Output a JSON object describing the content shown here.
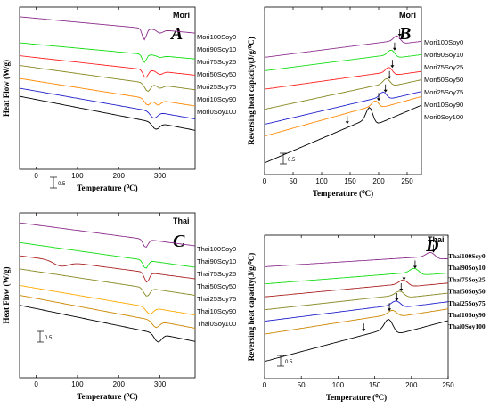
{
  "chart_data": [
    {
      "panel": "A",
      "type": "line",
      "tag": "Mori",
      "ylabel": "Heat Flow (W/g)",
      "xlabel": "Temperature (⁰C)",
      "xlim": [
        -40,
        385
      ],
      "xticks": [
        0,
        100,
        200,
        300
      ],
      "scale_label": "0.5",
      "series": [
        {
          "name": "Mori100Soy0",
          "color": "#8b2c8b",
          "y0": 0.06,
          "slope": 0.1,
          "dips": [
            [
              262,
              0.07,
              7
            ],
            [
              300,
              0.02,
              10
            ]
          ]
        },
        {
          "name": "Mori90Soy10",
          "color": "#11dd11",
          "y0": 0.22,
          "slope": 0.1,
          "dips": [
            [
              262,
              0.05,
              7
            ],
            [
              300,
              0.01,
              10
            ]
          ]
        },
        {
          "name": "Mori75Soy25",
          "color": "#ff2222",
          "y0": 0.3,
          "slope": 0.12,
          "dips": [
            [
              265,
              0.05,
              8
            ],
            [
              300,
              0.02,
              10
            ]
          ]
        },
        {
          "name": "Mori50Soy50",
          "color": "#888822",
          "y0": 0.36,
          "slope": 0.15,
          "dips": [
            [
              270,
              0.05,
              10
            ],
            [
              300,
              0.02,
              10
            ]
          ]
        },
        {
          "name": "Mori25Soy75",
          "color": "#ff8800",
          "y0": 0.44,
          "slope": 0.17,
          "dips": [
            [
              270,
              0.04,
              10
            ],
            [
              295,
              0.03,
              10
            ]
          ]
        },
        {
          "name": "Mori10Soy90",
          "color": "#2222cc",
          "y0": 0.5,
          "slope": 0.19,
          "dips": [
            [
              285,
              0.04,
              12
            ]
          ]
        },
        {
          "name": "Mori0Soy100",
          "color": "#000000",
          "y0": 0.55,
          "slope": 0.21,
          "dips": [
            [
              290,
              0.04,
              12
            ]
          ]
        }
      ]
    },
    {
      "panel": "B",
      "type": "line",
      "tag": "Mori",
      "ylabel": "Reversing heat capacity(J/g/⁰C)",
      "xlabel": "Temperature (⁰C)",
      "xlim": [
        0,
        275
      ],
      "xticks": [
        0,
        50,
        100,
        150,
        200,
        250
      ],
      "scale_label": "0.5",
      "series": [
        {
          "name": "Mori100Soy0",
          "color": "#8b2c8b",
          "y0": 0.3,
          "slope": -0.12,
          "step": [
            238,
            0.03
          ],
          "arrow": 237
        },
        {
          "name": "Mori90Soy10",
          "color": "#11dd11",
          "y0": 0.38,
          "slope": -0.12,
          "step": [
            228,
            0.03
          ],
          "arrow": 228
        },
        {
          "name": "Mori75Soy25",
          "color": "#ff2222",
          "y0": 0.49,
          "slope": -0.13,
          "step": [
            224,
            0.03
          ],
          "arrow": 224
        },
        {
          "name": "Mori50Soy50",
          "color": "#888822",
          "y0": 0.61,
          "slope": -0.2,
          "step": [
            220,
            0.03
          ],
          "arrow": 219
        },
        {
          "name": "Mori25Soy75",
          "color": "#2222cc",
          "y0": 0.7,
          "slope": -0.22,
          "step": [
            214,
            0.03
          ],
          "arrow": 212
        },
        {
          "name": "Mori10Soy90",
          "color": "#ff8800",
          "y0": 0.77,
          "slope": -0.26,
          "step": [
            200,
            0.03
          ],
          "arrow": 200
        },
        {
          "name": "Mori0Soy100",
          "color": "#000000",
          "y0": 0.93,
          "slope": -0.4,
          "step": [
            190,
            0.07
          ],
          "arrow": 145
        }
      ]
    },
    {
      "panel": "C",
      "type": "line",
      "tag": "Thai",
      "ylabel": "Heat Flow (W/g)",
      "xlabel": "Temperature (⁰C)",
      "xlim": [
        -40,
        385
      ],
      "xticks": [
        0,
        100,
        200,
        300
      ],
      "scale_label": "0.5",
      "series": [
        {
          "name": "Thai100Soy0",
          "color": "#8b2c8b",
          "y0": 0.06,
          "slope": 0.14,
          "dips": [
            [
              265,
              0.05,
              8
            ]
          ]
        },
        {
          "name": "Thai90Soy10",
          "color": "#11dd11",
          "y0": 0.18,
          "slope": 0.15,
          "dips": [
            [
              265,
              0.05,
              8
            ]
          ]
        },
        {
          "name": "Thai75Soy25",
          "color": "#aa2222",
          "y0": 0.26,
          "slope": 0.14,
          "dips": [
            [
              60,
              0.03,
              25
            ],
            [
              268,
              0.06,
              8
            ]
          ]
        },
        {
          "name": "Thai50Soy50",
          "color": "#888822",
          "y0": 0.34,
          "slope": 0.16,
          "dips": [
            [
              268,
              0.05,
              10
            ]
          ]
        },
        {
          "name": "Thai25Soy75",
          "color": "#ffaa00",
          "y0": 0.44,
          "slope": 0.18,
          "dips": [
            [
              275,
              0.04,
              12
            ]
          ]
        },
        {
          "name": "Thai10Soy90",
          "color": "#cc8800",
          "y0": 0.5,
          "slope": 0.2,
          "dips": [
            [
              290,
              0.04,
              12
            ]
          ]
        },
        {
          "name": "Thai0Soy100",
          "color": "#000000",
          "y0": 0.56,
          "slope": 0.22,
          "dips": [
            [
              295,
              0.05,
              12
            ]
          ]
        }
      ]
    },
    {
      "panel": "D",
      "type": "line",
      "tag": "Thai",
      "ylabel": "Reversing heat capacity(J/g/⁰C)",
      "xlabel": "Temperature (⁰C)",
      "xlim": [
        0,
        250
      ],
      "xticks": [
        0,
        50,
        100,
        150,
        200,
        250
      ],
      "scale_label": "0.5",
      "series": [
        {
          "name": "Thai100Soy0",
          "color": "#8b2c8b",
          "y0": 0.22,
          "slope": -0.08,
          "step": [
            232,
            0.03
          ],
          "arrow": 230
        },
        {
          "name": "Thai90Soy10",
          "color": "#11dd11",
          "y0": 0.34,
          "slope": -0.1,
          "step": [
            210,
            0.03
          ],
          "arrow": 205
        },
        {
          "name": "Thai75Soy25",
          "color": "#aa2222",
          "y0": 0.43,
          "slope": -0.12,
          "step": [
            195,
            0.03
          ],
          "arrow": 190
        },
        {
          "name": "Thai50Soy50",
          "color": "#888822",
          "y0": 0.52,
          "slope": -0.14,
          "step": [
            190,
            0.03
          ],
          "arrow": 186
        },
        {
          "name": "Thai25Soy75",
          "color": "#2222cc",
          "y0": 0.6,
          "slope": -0.16,
          "step": [
            185,
            0.03
          ],
          "arrow": 180
        },
        {
          "name": "Thai10Soy90",
          "color": "#cc8800",
          "y0": 0.69,
          "slope": -0.2,
          "step": [
            180,
            0.03
          ],
          "arrow": 170
        },
        {
          "name": "Thai0Soy100",
          "color": "#000000",
          "y0": 0.88,
          "slope": -0.34,
          "step": [
            175,
            0.07
          ],
          "arrow": 135
        }
      ]
    }
  ]
}
